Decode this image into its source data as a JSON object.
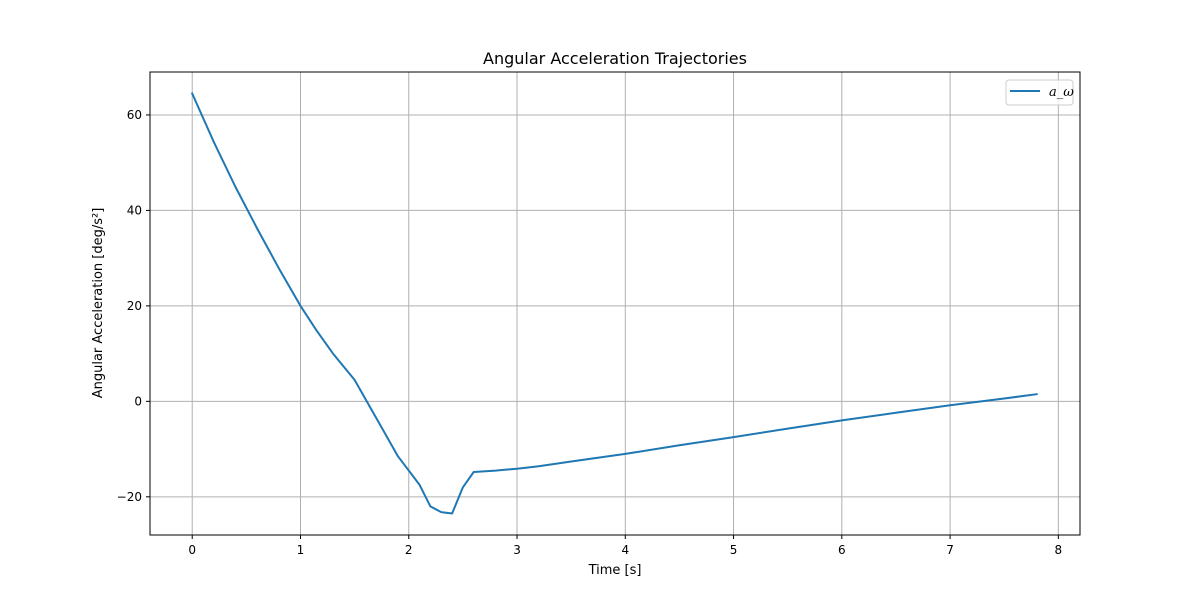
{
  "chart_data": {
    "type": "line",
    "title": "Angular Acceleration Trajectories",
    "xlabel": "Time [s]",
    "ylabel": "Angular Acceleration [deg/s²]",
    "xlim": [
      -0.39,
      8.2
    ],
    "ylim": [
      -28,
      69
    ],
    "xticks": [
      0,
      1,
      2,
      3,
      4,
      5,
      6,
      7,
      8
    ],
    "yticks": [
      -20,
      0,
      20,
      40,
      60
    ],
    "grid": true,
    "legend_position": "top-right",
    "series": [
      {
        "name": "a_ω",
        "color": "#1f77b4",
        "x": [
          0,
          0.2,
          0.4,
          0.6,
          0.8,
          1.0,
          1.15,
          1.3,
          1.5,
          1.7,
          1.9,
          2.1,
          2.2,
          2.3,
          2.4,
          2.5,
          2.6,
          2.8,
          3.0,
          3.2,
          3.5,
          4.0,
          4.5,
          5.0,
          5.5,
          6.0,
          6.5,
          7.0,
          7.5,
          7.8
        ],
        "y": [
          64.5,
          54.3,
          44.9,
          36.2,
          27.9,
          20.0,
          14.8,
          10.0,
          4.5,
          -3.5,
          -11.5,
          -17.5,
          -22.0,
          -23.2,
          -23.5,
          -18.0,
          -14.8,
          -14.5,
          -14.1,
          -13.6,
          -12.6,
          -11.0,
          -9.2,
          -7.5,
          -5.7,
          -4.0,
          -2.4,
          -0.8,
          0.6,
          1.5
        ]
      }
    ]
  }
}
